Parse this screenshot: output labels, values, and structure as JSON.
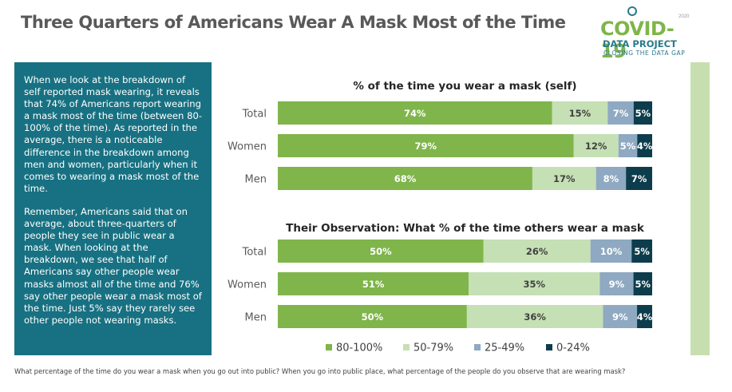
{
  "page": {
    "title": "Three Quarters of Americans Wear A Mask Most of the Time",
    "footer": "What percentage of the time do you wear a mask when you go out into public? When you go into public place, what percentage of the people do you observe that are wearing mask?"
  },
  "logo": {
    "main": "COVID-19",
    "sub": "DATA PROJECT",
    "tagline": "CLOSING THE DATA GAP",
    "year": "2020"
  },
  "sidebar": {
    "paragraph1": "When we look at the breakdown of self reported mask wearing, it reveals that 74% of Americans report wearing a mask most of the time (between 80-100% of the time). As reported in the average, there is a noticeable difference in the breakdown among men and women, particularly when it comes to wearing a mask most of the time.",
    "paragraph2": "Remember, Americans said that on average, about three-quarters of people they see in public wear a mask. When looking at the breakdown, we see that half of Americans say other people wear masks almost all of the time and 76% say other people wear a mask most of the time. Just 5% say they rarely see other people not wearing masks."
  },
  "colors": {
    "s1": "#7fb54a",
    "s2": "#c5e0b4",
    "s3": "#8ea9c1",
    "s4": "#0d3d4c",
    "sidebar_bg": "#177182"
  },
  "chart_data": [
    {
      "type": "bar",
      "orientation": "horizontal",
      "stacked": true,
      "title": "% of the time you wear a mask (self)",
      "categories": [
        "Total",
        "Women",
        "Men"
      ],
      "series": [
        {
          "name": "80-100%",
          "values": [
            74,
            79,
            68
          ]
        },
        {
          "name": "50-79%",
          "values": [
            15,
            12,
            17
          ]
        },
        {
          "name": "25-49%",
          "values": [
            7,
            5,
            8
          ]
        },
        {
          "name": "0-24%",
          "values": [
            5,
            4,
            7
          ]
        }
      ],
      "value_suffix": "%"
    },
    {
      "type": "bar",
      "orientation": "horizontal",
      "stacked": true,
      "title": "Their Observation: What % of the time others wear a mask",
      "categories": [
        "Total",
        "Women",
        "Men"
      ],
      "series": [
        {
          "name": "80-100%",
          "values": [
            50,
            51,
            50
          ]
        },
        {
          "name": "50-79%",
          "values": [
            26,
            35,
            36
          ]
        },
        {
          "name": "25-49%",
          "values": [
            10,
            9,
            9
          ]
        },
        {
          "name": "0-24%",
          "values": [
            5,
            5,
            4
          ]
        }
      ],
      "value_suffix": "%"
    }
  ],
  "legend": {
    "position": "bottom",
    "items": [
      "80-100%",
      "50-79%",
      "25-49%",
      "0-24%"
    ]
  }
}
